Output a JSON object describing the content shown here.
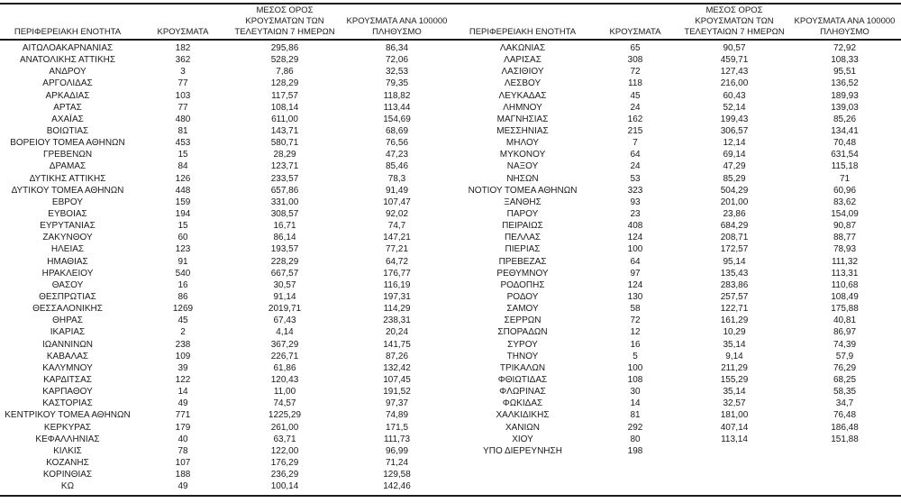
{
  "colors": {
    "background": "#ffffff",
    "text": "#1a1a1a",
    "rule": "#1a1a1a"
  },
  "headers": {
    "region": "ΠΕΡΙΦΕΡΕΙΑΚΗ ΕΝΟΤΗΤΑ",
    "cases": "ΚΡΟΥΣΜΑΤΑ",
    "avg7_lines": [
      "ΜΕΣΟΣ ΟΡΟΣ",
      "ΚΡΟΥΣΜΑΤΩΝ ΤΩΝ",
      "ΤΕΛΕΥΤΑΙΩΝ 7 ΗΜΕΡΩΝ"
    ],
    "per100k_lines": [
      "ΚΡΟΥΣΜΑΤΑ ΑΝΑ 100000",
      "ΠΛΗΘΥΣΜΟ"
    ]
  },
  "tables": {
    "left": {
      "rows": [
        [
          "ΑΙΤΩΛΟΑΚΑΡΝΑΝΙΑΣ",
          "182",
          "295,86",
          "86,34"
        ],
        [
          "ΑΝΑΤΟΛΙΚΗΣ ΑΤΤΙΚΗΣ",
          "362",
          "528,29",
          "72,06"
        ],
        [
          "ΑΝΔΡΟΥ",
          "3",
          "7,86",
          "32,53"
        ],
        [
          "ΑΡΓΟΛΙΔΑΣ",
          "77",
          "128,29",
          "79,35"
        ],
        [
          "ΑΡΚΑΔΙΑΣ",
          "103",
          "117,57",
          "118,82"
        ],
        [
          "ΑΡΤΑΣ",
          "77",
          "108,14",
          "113,44"
        ],
        [
          "ΑΧΑΪΑΣ",
          "480",
          "611,00",
          "154,69"
        ],
        [
          "ΒΟΙΩΤΙΑΣ",
          "81",
          "143,71",
          "68,69"
        ],
        [
          "ΒΟΡΕΙΟΥ ΤΟΜΕΑ ΑΘΗΝΩΝ",
          "453",
          "580,71",
          "76,56"
        ],
        [
          "ΓΡΕΒΕΝΩΝ",
          "15",
          "28,29",
          "47,23"
        ],
        [
          "ΔΡΑΜΑΣ",
          "84",
          "123,71",
          "85,46"
        ],
        [
          "ΔΥΤΙΚΗΣ ΑΤΤΙΚΗΣ",
          "126",
          "233,57",
          "78,3"
        ],
        [
          "ΔΥΤΙΚΟΥ ΤΟΜΕΑ ΑΘΗΝΩΝ",
          "448",
          "657,86",
          "91,49"
        ],
        [
          "ΕΒΡΟΥ",
          "159",
          "331,00",
          "107,47"
        ],
        [
          "ΕΥΒΟΙΑΣ",
          "194",
          "308,57",
          "92,02"
        ],
        [
          "ΕΥΡΥΤΑΝΙΑΣ",
          "15",
          "16,71",
          "74,7"
        ],
        [
          "ΖΑΚΥΝΘΟΥ",
          "60",
          "86,14",
          "147,21"
        ],
        [
          "ΗΛΕΙΑΣ",
          "123",
          "193,57",
          "77,21"
        ],
        [
          "ΗΜΑΘΙΑΣ",
          "91",
          "228,29",
          "64,72"
        ],
        [
          "ΗΡΑΚΛΕΙΟΥ",
          "540",
          "667,57",
          "176,77"
        ],
        [
          "ΘΑΣΟΥ",
          "16",
          "30,57",
          "116,19"
        ],
        [
          "ΘΕΣΠΡΩΤΙΑΣ",
          "86",
          "91,14",
          "197,31"
        ],
        [
          "ΘΕΣΣΑΛΟΝΙΚΗΣ",
          "1269",
          "2019,71",
          "114,29"
        ],
        [
          "ΘΗΡΑΣ",
          "45",
          "67,43",
          "238,31"
        ],
        [
          "ΙΚΑΡΙΑΣ",
          "2",
          "4,14",
          "20,24"
        ],
        [
          "ΙΩΑΝΝΙΝΩΝ",
          "238",
          "367,29",
          "141,75"
        ],
        [
          "ΚΑΒΑΛΑΣ",
          "109",
          "226,71",
          "87,26"
        ],
        [
          "ΚΑΛΥΜΝΟΥ",
          "39",
          "61,86",
          "132,42"
        ],
        [
          "ΚΑΡΔΙΤΣΑΣ",
          "122",
          "120,43",
          "107,45"
        ],
        [
          "ΚΑΡΠΑΘΟΥ",
          "14",
          "11,00",
          "191,52"
        ],
        [
          "ΚΑΣΤΟΡΙΑΣ",
          "49",
          "74,57",
          "97,37"
        ],
        [
          "ΚΕΝΤΡΙΚΟΥ ΤΟΜΕΑ ΑΘΗΝΩΝ",
          "771",
          "1225,29",
          "74,89"
        ],
        [
          "ΚΕΡΚΥΡΑΣ",
          "179",
          "261,00",
          "171,5"
        ],
        [
          "ΚΕΦΑΛΛΗΝΙΑΣ",
          "40",
          "63,71",
          "111,73"
        ],
        [
          "ΚΙΛΚΙΣ",
          "78",
          "122,00",
          "96,99"
        ],
        [
          "ΚΟΖΑΝΗΣ",
          "107",
          "176,29",
          "71,24"
        ],
        [
          "ΚΟΡΙΝΘΙΑΣ",
          "188",
          "236,29",
          "129,58"
        ],
        [
          "ΚΩ",
          "49",
          "100,14",
          "142,46"
        ]
      ]
    },
    "right": {
      "rows": [
        [
          "ΛΑΚΩΝΙΑΣ",
          "65",
          "90,57",
          "72,92"
        ],
        [
          "ΛΑΡΙΣΑΣ",
          "308",
          "459,71",
          "108,33"
        ],
        [
          "ΛΑΣΙΘΙΟΥ",
          "72",
          "127,43",
          "95,51"
        ],
        [
          "ΛΕΣΒΟΥ",
          "118",
          "216,00",
          "136,52"
        ],
        [
          "ΛΕΥΚΑΔΑΣ",
          "45",
          "60,43",
          "189,93"
        ],
        [
          "ΛΗΜΝΟΥ",
          "24",
          "52,14",
          "139,03"
        ],
        [
          "ΜΑΓΝΗΣΙΑΣ",
          "162",
          "199,43",
          "85,26"
        ],
        [
          "ΜΕΣΣΗΝΙΑΣ",
          "215",
          "306,57",
          "134,41"
        ],
        [
          "ΜΗΛΟΥ",
          "7",
          "12,14",
          "70,48"
        ],
        [
          "ΜΥΚΟΝΟΥ",
          "64",
          "69,14",
          "631,54"
        ],
        [
          "ΝΑΞΟΥ",
          "24",
          "47,29",
          "115,18"
        ],
        [
          "ΝΗΣΩΝ",
          "53",
          "85,29",
          "71"
        ],
        [
          "ΝΟΤΙΟΥ ΤΟΜΕΑ ΑΘΗΝΩΝ",
          "323",
          "504,29",
          "60,96"
        ],
        [
          "ΞΑΝΘΗΣ",
          "93",
          "201,00",
          "83,62"
        ],
        [
          "ΠΑΡΟΥ",
          "23",
          "23,86",
          "154,09"
        ],
        [
          "ΠΕΙΡΑΙΩΣ",
          "408",
          "684,29",
          "90,87"
        ],
        [
          "ΠΕΛΛΑΣ",
          "124",
          "208,71",
          "88,77"
        ],
        [
          "ΠΙΕΡΙΑΣ",
          "100",
          "172,57",
          "78,93"
        ],
        [
          "ΠΡΕΒΕΖΑΣ",
          "64",
          "95,14",
          "111,32"
        ],
        [
          "ΡΕΘΥΜΝΟΥ",
          "97",
          "135,43",
          "113,31"
        ],
        [
          "ΡΟΔΟΠΗΣ",
          "124",
          "283,86",
          "110,68"
        ],
        [
          "ΡΟΔΟΥ",
          "130",
          "257,57",
          "108,49"
        ],
        [
          "ΣΑΜΟΥ",
          "58",
          "122,71",
          "175,88"
        ],
        [
          "ΣΕΡΡΩΝ",
          "72",
          "161,29",
          "40,81"
        ],
        [
          "ΣΠΟΡΑΔΩΝ",
          "12",
          "10,29",
          "86,97"
        ],
        [
          "ΣΥΡΟΥ",
          "16",
          "35,14",
          "74,39"
        ],
        [
          "ΤΗΝΟΥ",
          "5",
          "9,14",
          "57,9"
        ],
        [
          "ΤΡΙΚΑΛΩΝ",
          "100",
          "211,29",
          "76,29"
        ],
        [
          "ΦΘΙΩΤΙΔΑΣ",
          "108",
          "155,29",
          "68,25"
        ],
        [
          "ΦΛΩΡΙΝΑΣ",
          "30",
          "35,14",
          "58,35"
        ],
        [
          "ΦΩΚΙΔΑΣ",
          "14",
          "32,57",
          "34,7"
        ],
        [
          "ΧΑΛΚΙΔΙΚΗΣ",
          "81",
          "181,00",
          "76,48"
        ],
        [
          "ΧΑΝΙΩΝ",
          "292",
          "407,14",
          "186,48"
        ],
        [
          "ΧΙΟΥ",
          "80",
          "113,14",
          "151,88"
        ],
        [
          "ΥΠΟ ΔΙΕΡΕΥΝΗΣΗ",
          "198",
          "",
          ""
        ]
      ]
    }
  }
}
